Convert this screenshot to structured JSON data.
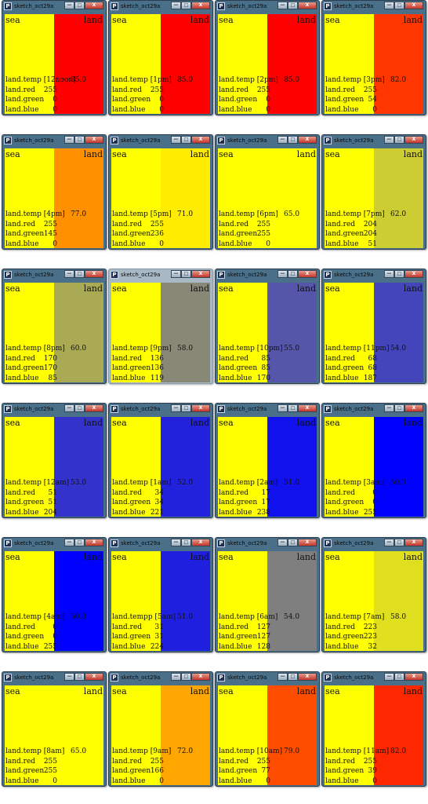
{
  "window_title": "sketch_oct29a",
  "app_icon": "P",
  "controls": {
    "minimize": "—",
    "maximize": "□",
    "close": "X"
  },
  "labels": {
    "sea": "sea",
    "land": "land"
  },
  "field_labels": {
    "red": "land.red",
    "green": "land.green",
    "blue": "land.blue"
  },
  "sea_color": "#ffff00",
  "windows": [
    {
      "temp_label": "land.temp [12noon]",
      "temp": "85.0",
      "red": "255",
      "green": "0",
      "blue": "0",
      "land_color": "#ff0000"
    },
    {
      "temp_label": "land.temp [1pm]",
      "temp": "85.0",
      "red": "255",
      "green": "0",
      "blue": "0",
      "land_color": "#ff0000"
    },
    {
      "temp_label": "land.temp [2pm]",
      "temp": "85.0",
      "red": "255",
      "green": "0",
      "blue": "0",
      "land_color": "#ff0000"
    },
    {
      "temp_label": "land.temp [3pm]",
      "temp": "82.0",
      "red": "255",
      "green": "54",
      "blue": "0",
      "land_color": "#ff3600"
    },
    {
      "temp_label": "land.temp [4pm]",
      "temp": "77.0",
      "red": "255",
      "green": "145",
      "blue": "0",
      "land_color": "#ff9100"
    },
    {
      "temp_label": "land.temp [5pm]",
      "temp": "71.0",
      "red": "255",
      "green": "236",
      "blue": "0",
      "land_color": "#ffec00"
    },
    {
      "temp_label": "land.temp [6pm]",
      "temp": "65.0",
      "red": "255",
      "green": "255",
      "blue": "0",
      "land_color": "#ffff00"
    },
    {
      "temp_label": "land.temp [7pm]",
      "temp": "62.0",
      "red": "204",
      "green": "204",
      "blue": "51",
      "land_color": "#cccc33"
    },
    {
      "temp_label": "land.temp [8pm]",
      "temp": "60.0",
      "red": "170",
      "green": "170",
      "blue": "85",
      "land_color": "#aaaa55"
    },
    {
      "temp_label": "land.temp [9pm]",
      "temp": "58.0",
      "red": "136",
      "green": "136",
      "blue": "119",
      "land_color": "#888877"
    },
    {
      "temp_label": "land.temp [10pm]",
      "temp": "55.0",
      "red": "85",
      "green": "85",
      "blue": "170",
      "land_color": "#5555aa"
    },
    {
      "temp_label": "land.temp [11pm]",
      "temp": "54.0",
      "red": "68",
      "green": "68",
      "blue": "187",
      "land_color": "#4444bb"
    },
    {
      "temp_label": "land.temp [12am]",
      "temp": "53.0",
      "red": "51",
      "green": "51",
      "blue": "204",
      "land_color": "#3333cc"
    },
    {
      "temp_label": "land.temp [1am]",
      "temp": "52.0",
      "red": "34",
      "green": "34",
      "blue": "221",
      "land_color": "#2222dd"
    },
    {
      "temp_label": "land.temp [2am]",
      "temp": "51.0",
      "red": "17",
      "green": "17",
      "blue": "238",
      "land_color": "#1111ee"
    },
    {
      "temp_label": "land.temp [3am]",
      "temp": "50.0",
      "red": "0",
      "green": "0",
      "blue": "255",
      "land_color": "#0000ff"
    },
    {
      "temp_label": "land.temp [4am]",
      "temp": "50.0",
      "red": "0",
      "green": "0",
      "blue": "255",
      "land_color": "#0000ff"
    },
    {
      "temp_label": "land.tempp [5am]",
      "temp": "51.0",
      "red": "31",
      "green": "31",
      "blue": "224",
      "land_color": "#1f1fe0"
    },
    {
      "temp_label": "land.temp [6am]",
      "temp": "54.0",
      "red": "127",
      "green": "127",
      "blue": "128",
      "land_color": "#7f7f80"
    },
    {
      "temp_label": "land.temp [7am]",
      "temp": "58.0",
      "red": "223",
      "green": "223",
      "blue": "32",
      "land_color": "#dfdf20"
    },
    {
      "temp_label": "land.temp [8am]",
      "temp": "65.0",
      "red": "255",
      "green": "255",
      "blue": "0",
      "land_color": "#ffff00"
    },
    {
      "temp_label": "land.temp [9am]",
      "temp": "72.0",
      "red": "255",
      "green": "166",
      "blue": "0",
      "land_color": "#ffa600"
    },
    {
      "temp_label": "land.temp [10am]",
      "temp": "79.0",
      "red": "255",
      "green": "77",
      "blue": "0",
      "land_color": "#ff4d00"
    },
    {
      "temp_label": "land.temp [11am]",
      "temp": "82.0",
      "red": "255",
      "green": "39",
      "blue": "0",
      "land_color": "#ff2700"
    }
  ]
}
